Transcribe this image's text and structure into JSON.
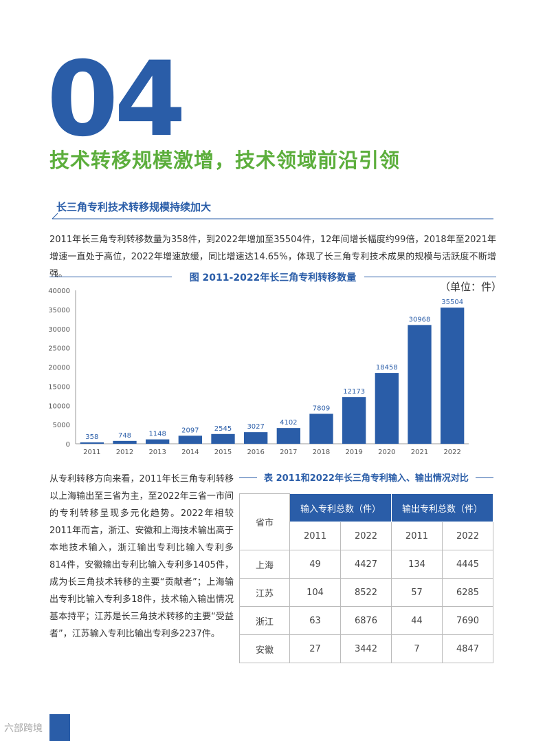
{
  "section_number": "04",
  "main_title": "技术转移规模激增，技术领域前沿引领",
  "section_heading": "长三角专利技术转移规模持续加大",
  "paragraph1": "2011年长三角专利转移数量为358件，到2022年增加至35504件，12年间增长幅度约99倍，2018年至2021年增速一直处于高位，2022年增速放缓，同比增速达14.65%，体现了长三角专利技术成果的规模与活跃度不断增强。",
  "chart_title": "图 2011-2022年长三角专利转移数量",
  "chart_unit": "（单位：件）",
  "chart_data": {
    "type": "bar",
    "categories": [
      "2011",
      "2012",
      "2013",
      "2014",
      "2015",
      "2016",
      "2017",
      "2018",
      "2019",
      "2020",
      "2021",
      "2022"
    ],
    "values": [
      358,
      748,
      1148,
      2097,
      2545,
      3027,
      4102,
      7809,
      12173,
      18458,
      30968,
      35504
    ],
    "yticks": [
      0,
      5000,
      10000,
      15000,
      20000,
      25000,
      30000,
      35000,
      40000
    ],
    "ylim": [
      0,
      40000
    ],
    "bar_color": "#2a5da8"
  },
  "paragraph2": "从专利转移方向来看，2011年长三角专利转移以上海输出至三省为主，至2022年三省一市间的专利转移呈现多元化趋势。2022年相较2011年而言，浙江、安徽和上海技术输出高于本地技术输入，浙江输出专利比输入专利多814件，安徽输出专利比输入专利多1405件，成为长三角技术转移的主要“贡献者”；上海输出专利比输入专利多18件，技术输入输出情况基本持平；江苏是长三角技术转移的主要“受益者”，江苏输入专利比输出专利多2237件。",
  "table": {
    "title": "表 2011和2022年长三角专利输入、输出情况对比",
    "col_province": "省市",
    "group_in": "输入专利总数（件）",
    "group_out": "输出专利总数（件）",
    "years": [
      "2011",
      "2022",
      "2011",
      "2022"
    ],
    "rows": [
      {
        "name": "上海",
        "values": [
          "49",
          "4427",
          "134",
          "4445"
        ]
      },
      {
        "name": "江苏",
        "values": [
          "104",
          "8522",
          "57",
          "6285"
        ]
      },
      {
        "name": "浙江",
        "values": [
          "63",
          "6876",
          "44",
          "7690"
        ]
      },
      {
        "name": "安徽",
        "values": [
          "27",
          "3442",
          "7",
          "4847"
        ]
      }
    ]
  },
  "watermark": "六部跨境",
  "colors": {
    "accent": "#2a5da8",
    "green": "#5cae3c"
  }
}
